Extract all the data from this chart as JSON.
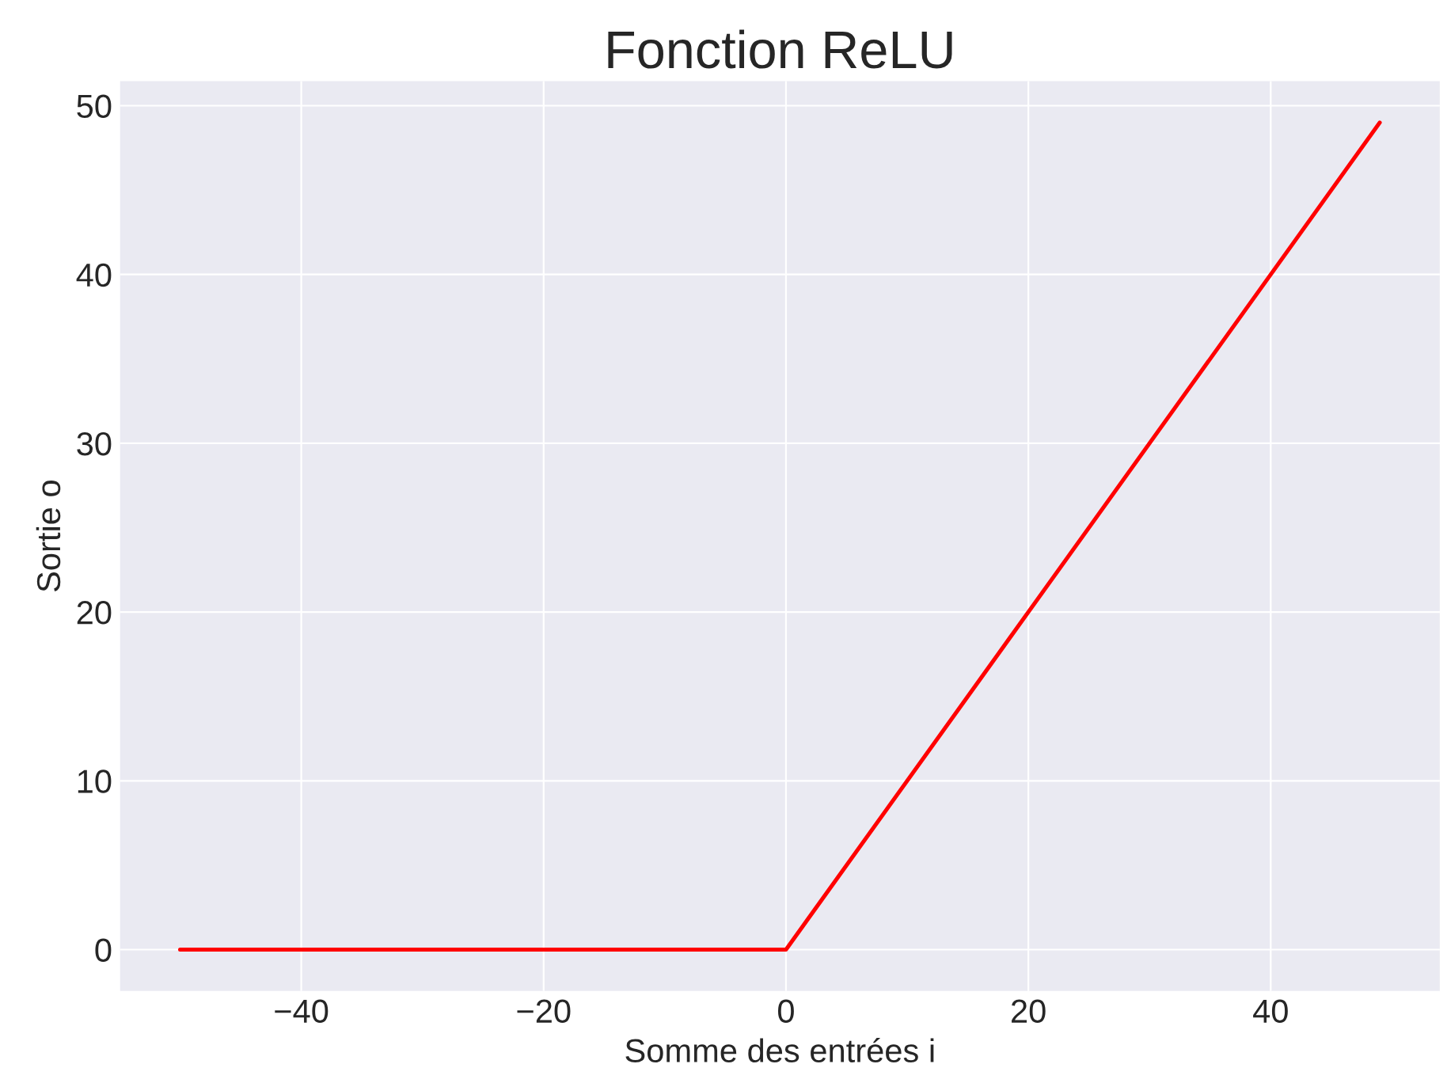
{
  "chart_data": {
    "type": "line",
    "title": "Fonction ReLU",
    "xlabel": "Somme des entrées i",
    "ylabel": "Sortie o",
    "x": [
      -50,
      0,
      49
    ],
    "series": [
      {
        "color": "#ff0000",
        "values": [
          0,
          0,
          49
        ]
      }
    ],
    "xlim": [
      -54.95,
      53.95
    ],
    "xticks": [
      {
        "value": -40,
        "label": "−40"
      },
      {
        "value": -20,
        "label": "−20"
      },
      0,
      20,
      40
    ],
    "ylim": [
      -2.45,
      51.45
    ],
    "yticks": [
      0,
      10,
      20,
      30,
      40,
      50
    ],
    "grid": true,
    "marker": "none",
    "line_style": "solid"
  }
}
